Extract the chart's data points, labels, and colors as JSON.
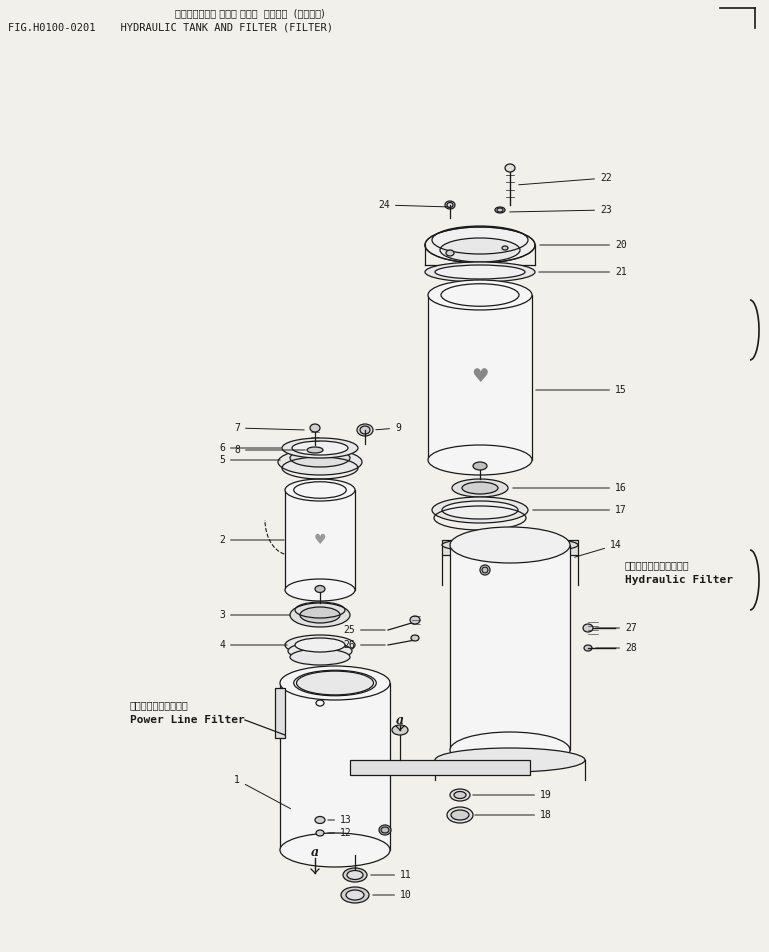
{
  "title_jp": "ハイドロリック タンク および  フィルタ  (フィルタ)",
  "title_en": "FIG.H0100-0201    HYDRAULIC TANK AND FILTER (FILTER)",
  "bg_color": "#f2f0eb",
  "lc": "#1a1a1a",
  "lw": 0.9,
  "fig_w": 7.69,
  "fig_h": 9.52,
  "hydraulic_filter_jp": "ハイドロリックフィルタ",
  "hydraulic_filter_en": "Hydraulic Filter",
  "power_line_jp": "パワーラインフィルタ",
  "power_line_en": "Power Line Filter"
}
